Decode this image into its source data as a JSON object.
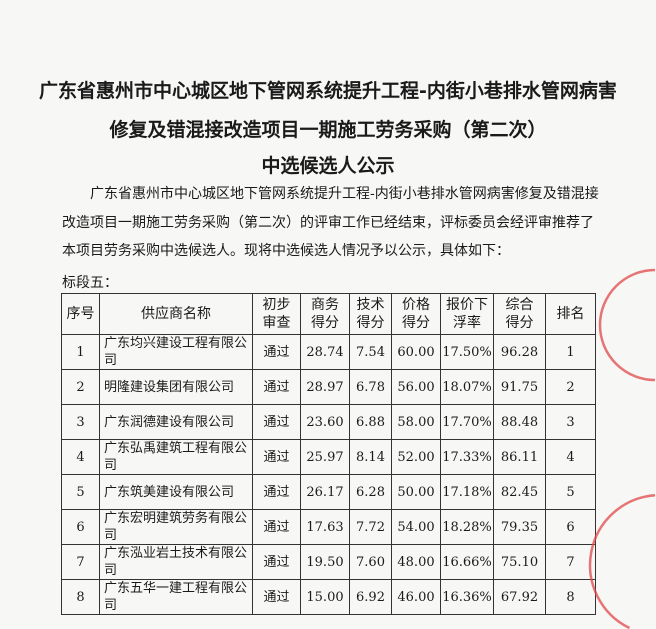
{
  "title_lines": [
    "广东省惠州市中心城区地下管网系统提升工程-内街小巷排水管网病害",
    "修复及错混接改造项目一期施工劳务采购（第二次）",
    "中选候选人公示"
  ],
  "paragraph": "广东省惠州市中心城区地下管网系统提升工程-内街小巷排水管网病害修复及错混接改造项目一期施工劳务采购（第二次）的评审工作已经结束，评标委员会经评审推荐了本项目劳务采购中选候选人。现将中选候选人情况予以公示，具体如下：",
  "section_label": "标段五：",
  "table": {
    "headers": [
      "序号",
      "供应商名称",
      "初步审查",
      "商务得分",
      "技术得分",
      "价格得分",
      "报价下浮率",
      "综合得分",
      "排名"
    ],
    "rows": [
      [
        "1",
        "广东均兴建设工程有限公司",
        "通过",
        "28.74",
        "7.54",
        "60.00",
        "17.50%",
        "96.28",
        "1"
      ],
      [
        "2",
        "明隆建设集团有限公司",
        "通过",
        "28.97",
        "6.78",
        "56.00",
        "18.07%",
        "91.75",
        "2"
      ],
      [
        "3",
        "广东润德建设有限公司",
        "通过",
        "23.60",
        "6.88",
        "58.00",
        "17.70%",
        "88.48",
        "3"
      ],
      [
        "4",
        "广东弘禹建筑工程有限公司",
        "通过",
        "25.97",
        "8.14",
        "52.00",
        "17.33%",
        "86.11",
        "4"
      ],
      [
        "5",
        "广东筑美建设有限公司",
        "通过",
        "26.17",
        "6.28",
        "50.00",
        "17.18%",
        "82.45",
        "5"
      ],
      [
        "6",
        "广东宏明建筑劳务有限公司",
        "通过",
        "17.63",
        "7.72",
        "54.00",
        "18.28%",
        "79.35",
        "6"
      ],
      [
        "7",
        "广东泓业岩土技术有限公司",
        "通过",
        "19.50",
        "7.60",
        "48.00",
        "16.66%",
        "75.10",
        "7"
      ],
      [
        "8",
        "广东五华一建工程有限公司",
        "通过",
        "15.00",
        "6.92",
        "46.00",
        "16.36%",
        "67.92",
        "8"
      ]
    ]
  },
  "colors": {
    "stamp": "#e04848"
  }
}
